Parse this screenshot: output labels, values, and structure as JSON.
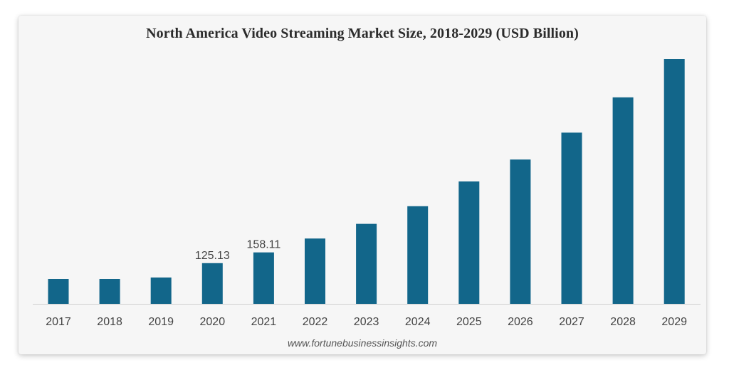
{
  "source_text": "www.fortunebusinessinsights.com",
  "chart_data": {
    "type": "bar",
    "title": "North America Video Streaming Market Size, 2018-2029 (USD Billion)",
    "categories": [
      "2017",
      "2018",
      "2019",
      "2020",
      "2021",
      "2022",
      "2023",
      "2024",
      "2025",
      "2026",
      "2027",
      "2028",
      "2029"
    ],
    "values": [
      76.4,
      76.6,
      80.9,
      125.13,
      158.11,
      200.7,
      245.7,
      299.8,
      375.9,
      443.2,
      526.0,
      634.3,
      751.9
    ],
    "data_labels": [
      "",
      "",
      "",
      "125.13",
      "158.11",
      "",
      "",
      "",
      "",
      "",
      "",
      "",
      ""
    ],
    "xlabel": "",
    "ylabel": "",
    "ylim": [
      0,
      751.9
    ],
    "grid": false,
    "legend": "none",
    "bar_color": "#12668a",
    "axis_color": "#cfcfcf",
    "label_color": "#444444"
  }
}
